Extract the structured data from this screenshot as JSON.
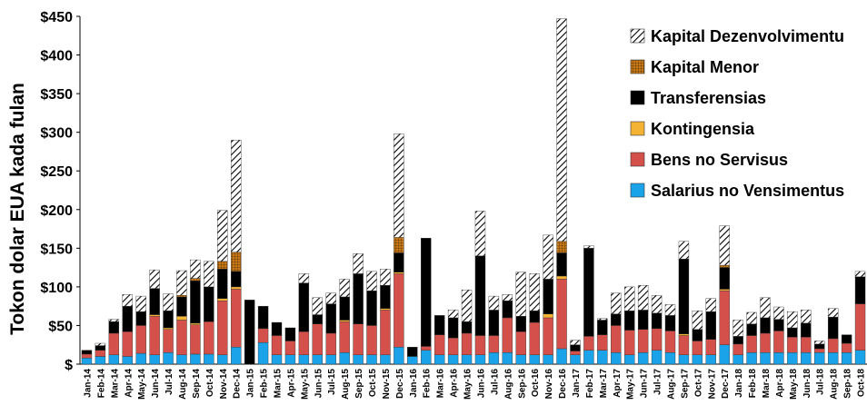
{
  "chart_data": {
    "type": "stacked_bar",
    "y_label": "Tokon dolar EUA kada fulan",
    "categories": [
      "Jan-14",
      "Feb-14",
      "Mar-14",
      "Apr-14",
      "May-14",
      "Jun-14",
      "Jul-14",
      "Aug-14",
      "Sep-14",
      "Oct-14",
      "Nov-14",
      "Dec-14",
      "Jan-15",
      "Feb-15",
      "Mar-15",
      "Apr-15",
      "May-15",
      "Jun-15",
      "Jul-15",
      "Aug-15",
      "Sep-15",
      "Oct-15",
      "Nov-15",
      "Dec-15",
      "Jan-16",
      "Feb-16",
      "Mar-16",
      "Apr-16",
      "May-16",
      "Jun-16",
      "Jul-16",
      "Aug-16",
      "Sep-16",
      "Oct-16",
      "Nov-16",
      "Dec-16",
      "Jan-17",
      "Feb-17",
      "Mar-17",
      "Apr-17",
      "May-17",
      "Jun-17",
      "Jul-17",
      "Aug-17",
      "Sep-17",
      "Oct-17",
      "Nov-17",
      "Dec-17",
      "Jan-18",
      "Feb-18",
      "Mar-18",
      "Apr-18",
      "May-18",
      "Jun-18",
      "Jul-18",
      "Aug-18",
      "Sep-18",
      "Oct-18"
    ],
    "series": [
      {
        "name": "Salarius no Vensimentus",
        "color": "#1aa3e8",
        "values": [
          8,
          10,
          12,
          10,
          14,
          12,
          15,
          12,
          13,
          13,
          12,
          22,
          0,
          28,
          12,
          12,
          12,
          12,
          12,
          15,
          12,
          12,
          12,
          22,
          10,
          18,
          12,
          12,
          12,
          12,
          15,
          15,
          12,
          12,
          12,
          20,
          12,
          18,
          18,
          15,
          12,
          15,
          18,
          15,
          12,
          12,
          12,
          25,
          12,
          15,
          15,
          15,
          15,
          15,
          15,
          15,
          15,
          18
        ]
      },
      {
        "name": "Bens no Servisus",
        "color": "#d4504a",
        "values": [
          5,
          8,
          28,
          32,
          36,
          50,
          30,
          45,
          38,
          42,
          70,
          75,
          0,
          18,
          25,
          18,
          30,
          40,
          28,
          40,
          40,
          38,
          58,
          95,
          0,
          5,
          26,
          22,
          28,
          25,
          22,
          45,
          30,
          42,
          48,
          90,
          5,
          18,
          20,
          35,
          32,
          30,
          28,
          28,
          25,
          18,
          20,
          70,
          14,
          22,
          25,
          28,
          20,
          20,
          5,
          18,
          12,
          60
        ]
      },
      {
        "name": "Kontingensia",
        "color": "#f5b335",
        "values": [
          0,
          0,
          0,
          0,
          0,
          2,
          2,
          5,
          2,
          0,
          3,
          3,
          0,
          0,
          0,
          0,
          0,
          0,
          0,
          2,
          0,
          0,
          2,
          2,
          0,
          0,
          0,
          0,
          0,
          0,
          0,
          0,
          0,
          0,
          5,
          4,
          0,
          0,
          0,
          0,
          0,
          0,
          0,
          0,
          2,
          0,
          0,
          2,
          0,
          0,
          0,
          0,
          0,
          0,
          0,
          0,
          0,
          0
        ]
      },
      {
        "name": "Transferensias",
        "color": "#000000",
        "values": [
          5,
          6,
          15,
          33,
          18,
          34,
          22,
          25,
          55,
          45,
          38,
          20,
          83,
          29,
          17,
          17,
          63,
          12,
          38,
          30,
          65,
          45,
          30,
          25,
          12,
          140,
          25,
          26,
          15,
          103,
          33,
          22,
          20,
          15,
          45,
          30,
          8,
          114,
          19,
          15,
          25,
          25,
          20,
          20,
          97,
          15,
          36,
          28,
          10,
          15,
          20,
          15,
          12,
          18,
          6,
          28,
          11,
          35
        ]
      },
      {
        "name": "Kapital Menor",
        "color": "#c87a1a",
        "pattern": "grid",
        "values": [
          0,
          0,
          0,
          0,
          0,
          0,
          0,
          2,
          3,
          0,
          10,
          25,
          0,
          0,
          0,
          0,
          0,
          0,
          0,
          0,
          0,
          0,
          0,
          20,
          0,
          0,
          0,
          0,
          0,
          0,
          0,
          0,
          0,
          0,
          0,
          15,
          0,
          0,
          0,
          0,
          0,
          0,
          0,
          0,
          0,
          0,
          0,
          3,
          0,
          0,
          0,
          0,
          0,
          0,
          0,
          0,
          0,
          0
        ]
      },
      {
        "name": "Kapital Dezenvolvimentu",
        "color": "#000000",
        "pattern": "hatch",
        "values": [
          0,
          3,
          3,
          15,
          20,
          24,
          22,
          32,
          24,
          33,
          66,
          145,
          0,
          0,
          0,
          0,
          12,
          22,
          14,
          23,
          26,
          25,
          21,
          134,
          0,
          0,
          0,
          10,
          41,
          58,
          18,
          8,
          57,
          48,
          57,
          288,
          6,
          3,
          2,
          27,
          31,
          32,
          23,
          14,
          23,
          24,
          17,
          51,
          21,
          15,
          26,
          16,
          21,
          17,
          4,
          11,
          0,
          7
        ]
      }
    ],
    "ylim": [
      0,
      450
    ],
    "yticks": [
      {
        "value": 0,
        "label": "$"
      },
      {
        "value": 50,
        "label": "$50"
      },
      {
        "value": 100,
        "label": "$100"
      },
      {
        "value": 150,
        "label": "$150"
      },
      {
        "value": 200,
        "label": "$200"
      },
      {
        "value": 250,
        "label": "$250"
      },
      {
        "value": 300,
        "label": "$300"
      },
      {
        "value": 350,
        "label": "$350"
      },
      {
        "value": 400,
        "label": "$400"
      },
      {
        "value": 450,
        "label": "$450"
      }
    ],
    "legend": "top-right"
  }
}
